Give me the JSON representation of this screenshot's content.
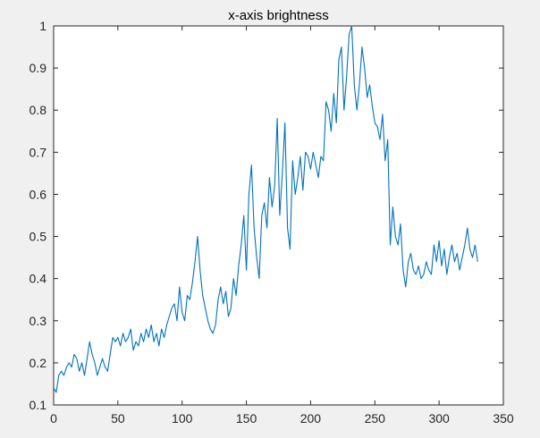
{
  "chart_data": {
    "type": "line",
    "title": "x-axis brightness",
    "xlabel": "",
    "ylabel": "",
    "xlim": [
      0,
      350
    ],
    "ylim": [
      0.1,
      1
    ],
    "xticks": [
      0,
      50,
      100,
      150,
      200,
      250,
      300,
      350
    ],
    "yticks": [
      0.1,
      0.2,
      0.3,
      0.4,
      0.5,
      0.6,
      0.7,
      0.8,
      0.9,
      1
    ],
    "grid": false,
    "line_color": "#0072bd",
    "series": [
      {
        "x": [
          0,
          2,
          4,
          6,
          8,
          10,
          12,
          14,
          16,
          18,
          20,
          22,
          24,
          26,
          28,
          30,
          32,
          34,
          36,
          38,
          40,
          42,
          44,
          46,
          48,
          50,
          52,
          54,
          56,
          58,
          60,
          62,
          64,
          66,
          68,
          70,
          72,
          74,
          76,
          78,
          80,
          82,
          84,
          86,
          88,
          90,
          92,
          94,
          96,
          98,
          100,
          102,
          104,
          106,
          108,
          110,
          112,
          114,
          116,
          118,
          120,
          122,
          124,
          126,
          128,
          130,
          132,
          134,
          136,
          138,
          140,
          142,
          144,
          146,
          148,
          150,
          152,
          154,
          156,
          158,
          160,
          162,
          164,
          166,
          168,
          170,
          172,
          174,
          176,
          178,
          180,
          182,
          184,
          186,
          188,
          190,
          192,
          194,
          196,
          198,
          200,
          202,
          204,
          206,
          208,
          210,
          212,
          214,
          216,
          218,
          220,
          222,
          224,
          226,
          228,
          230,
          232,
          234,
          236,
          238,
          240,
          242,
          244,
          246,
          248,
          250,
          252,
          254,
          256,
          258,
          260,
          262,
          264,
          266,
          268,
          270,
          272,
          274,
          276,
          278,
          280,
          282,
          284,
          286,
          288,
          290,
          292,
          294,
          296,
          298,
          300,
          302,
          304,
          306,
          308,
          310,
          312,
          314,
          316,
          318,
          320,
          322,
          324,
          326,
          328,
          330
        ],
        "values": [
          0.14,
          0.13,
          0.17,
          0.18,
          0.17,
          0.19,
          0.2,
          0.19,
          0.22,
          0.21,
          0.18,
          0.2,
          0.17,
          0.21,
          0.25,
          0.22,
          0.2,
          0.17,
          0.19,
          0.21,
          0.19,
          0.18,
          0.22,
          0.26,
          0.25,
          0.26,
          0.24,
          0.27,
          0.25,
          0.26,
          0.28,
          0.23,
          0.25,
          0.24,
          0.27,
          0.25,
          0.28,
          0.26,
          0.29,
          0.25,
          0.27,
          0.24,
          0.28,
          0.26,
          0.29,
          0.31,
          0.33,
          0.34,
          0.3,
          0.38,
          0.32,
          0.3,
          0.36,
          0.35,
          0.39,
          0.44,
          0.5,
          0.42,
          0.36,
          0.33,
          0.3,
          0.28,
          0.27,
          0.29,
          0.35,
          0.38,
          0.34,
          0.37,
          0.31,
          0.33,
          0.4,
          0.36,
          0.43,
          0.48,
          0.55,
          0.42,
          0.6,
          0.67,
          0.52,
          0.45,
          0.4,
          0.55,
          0.58,
          0.52,
          0.64,
          0.57,
          0.62,
          0.78,
          0.55,
          0.65,
          0.77,
          0.52,
          0.47,
          0.68,
          0.6,
          0.64,
          0.69,
          0.61,
          0.7,
          0.69,
          0.66,
          0.7,
          0.67,
          0.64,
          0.69,
          0.68,
          0.82,
          0.8,
          0.75,
          0.84,
          0.77,
          0.92,
          0.95,
          0.8,
          0.88,
          0.98,
          1.0,
          0.86,
          0.8,
          0.86,
          0.95,
          0.9,
          0.83,
          0.86,
          0.81,
          0.77,
          0.76,
          0.73,
          0.79,
          0.68,
          0.73,
          0.48,
          0.57,
          0.5,
          0.48,
          0.53,
          0.42,
          0.38,
          0.44,
          0.46,
          0.42,
          0.41,
          0.43,
          0.4,
          0.41,
          0.44,
          0.42,
          0.41,
          0.48,
          0.44,
          0.49,
          0.43,
          0.47,
          0.41,
          0.45,
          0.48,
          0.44,
          0.46,
          0.42,
          0.45,
          0.48,
          0.52,
          0.47,
          0.45,
          0.48,
          0.44
        ]
      }
    ]
  }
}
